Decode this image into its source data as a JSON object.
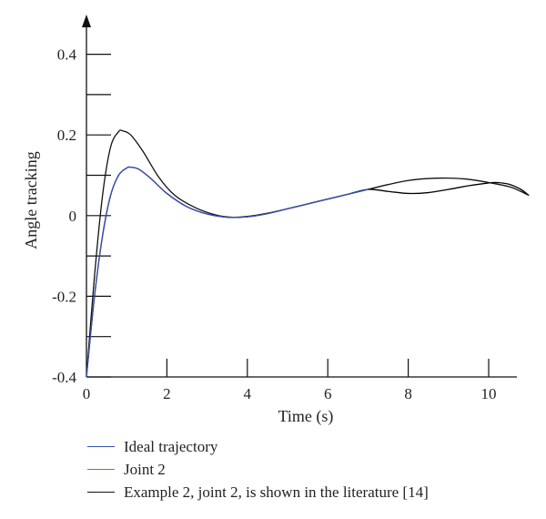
{
  "chart_data": {
    "type": "line",
    "xlabel": "Time (s)",
    "ylabel": "Angle tracking",
    "xlim": [
      0,
      11
    ],
    "ylim": [
      -0.4,
      0.4
    ],
    "x_ticks": [
      0,
      2,
      4,
      6,
      8,
      10
    ],
    "y_ticks": [
      -0.4,
      -0.2,
      0,
      0.2,
      0.4
    ],
    "x_tick_labels": [
      "0",
      "2",
      "4",
      "6",
      "8",
      "10"
    ],
    "y_tick_labels": [
      "-0.4",
      "-0.2",
      "0",
      "0.2",
      "0.4"
    ],
    "grid": false,
    "legend_position": "bottom",
    "series": [
      {
        "name": "Ideal trajectory",
        "color": "#3a4fb0",
        "points": [
          [
            0,
            -0.4
          ],
          [
            0.2,
            -0.2
          ],
          [
            0.4,
            -0.05
          ],
          [
            0.6,
            0.05
          ],
          [
            0.8,
            0.1
          ],
          [
            1.0,
            0.118
          ],
          [
            1.1,
            0.12
          ],
          [
            1.3,
            0.115
          ],
          [
            1.6,
            0.092
          ],
          [
            2.0,
            0.055
          ],
          [
            2.5,
            0.022
          ],
          [
            3.0,
            0.004
          ],
          [
            3.5,
            -0.004
          ],
          [
            4.0,
            -0.003
          ],
          [
            4.5,
            0.005
          ],
          [
            5.0,
            0.017
          ],
          [
            5.5,
            0.029
          ],
          [
            6.0,
            0.041
          ],
          [
            6.5,
            0.053
          ],
          [
            7.0,
            0.065
          ]
        ]
      },
      {
        "name": "Joint 2",
        "color": "#e0521e",
        "points": [
          [
            0,
            -0.4
          ],
          [
            0.2,
            -0.2
          ],
          [
            0.4,
            -0.05
          ],
          [
            0.6,
            0.05
          ],
          [
            0.8,
            0.1
          ],
          [
            1.0,
            0.118
          ],
          [
            1.1,
            0.12
          ],
          [
            1.3,
            0.115
          ],
          [
            1.6,
            0.092
          ],
          [
            2.0,
            0.055
          ],
          [
            2.5,
            0.022
          ],
          [
            3.0,
            0.004
          ],
          [
            3.5,
            -0.004
          ],
          [
            4.0,
            -0.003
          ],
          [
            4.5,
            0.005
          ],
          [
            5.0,
            0.017
          ],
          [
            5.5,
            0.029
          ],
          [
            6.0,
            0.041
          ],
          [
            6.5,
            0.053
          ],
          [
            7.0,
            0.065
          ],
          [
            7.5,
            0.06
          ],
          [
            8.0,
            0.055
          ],
          [
            8.5,
            0.057
          ],
          [
            9.0,
            0.065
          ],
          [
            9.5,
            0.074
          ],
          [
            10.0,
            0.081
          ],
          [
            10.2,
            0.082
          ],
          [
            10.5,
            0.078
          ],
          [
            10.8,
            0.065
          ],
          [
            11.0,
            0.05
          ]
        ]
      },
      {
        "name": "Example 2, joint 2, is shown in the literature [14]",
        "color": "#111111",
        "points": [
          [
            0,
            -0.4
          ],
          [
            0.2,
            -0.15
          ],
          [
            0.4,
            0.05
          ],
          [
            0.6,
            0.17
          ],
          [
            0.8,
            0.208
          ],
          [
            0.9,
            0.21
          ],
          [
            1.1,
            0.2
          ],
          [
            1.4,
            0.16
          ],
          [
            1.8,
            0.095
          ],
          [
            2.2,
            0.05
          ],
          [
            2.7,
            0.02
          ],
          [
            3.2,
            0.002
          ],
          [
            3.6,
            -0.004
          ],
          [
            4.0,
            -0.002
          ],
          [
            4.5,
            0.006
          ],
          [
            5.0,
            0.017
          ],
          [
            5.5,
            0.029
          ],
          [
            6.0,
            0.041
          ],
          [
            6.5,
            0.053
          ],
          [
            7.0,
            0.065
          ],
          [
            7.5,
            0.077
          ],
          [
            8.0,
            0.087
          ],
          [
            8.5,
            0.092
          ],
          [
            9.0,
            0.093
          ],
          [
            9.5,
            0.09
          ],
          [
            10.0,
            0.082
          ],
          [
            10.5,
            0.072
          ],
          [
            10.8,
            0.06
          ],
          [
            11.0,
            0.05
          ]
        ]
      }
    ]
  }
}
